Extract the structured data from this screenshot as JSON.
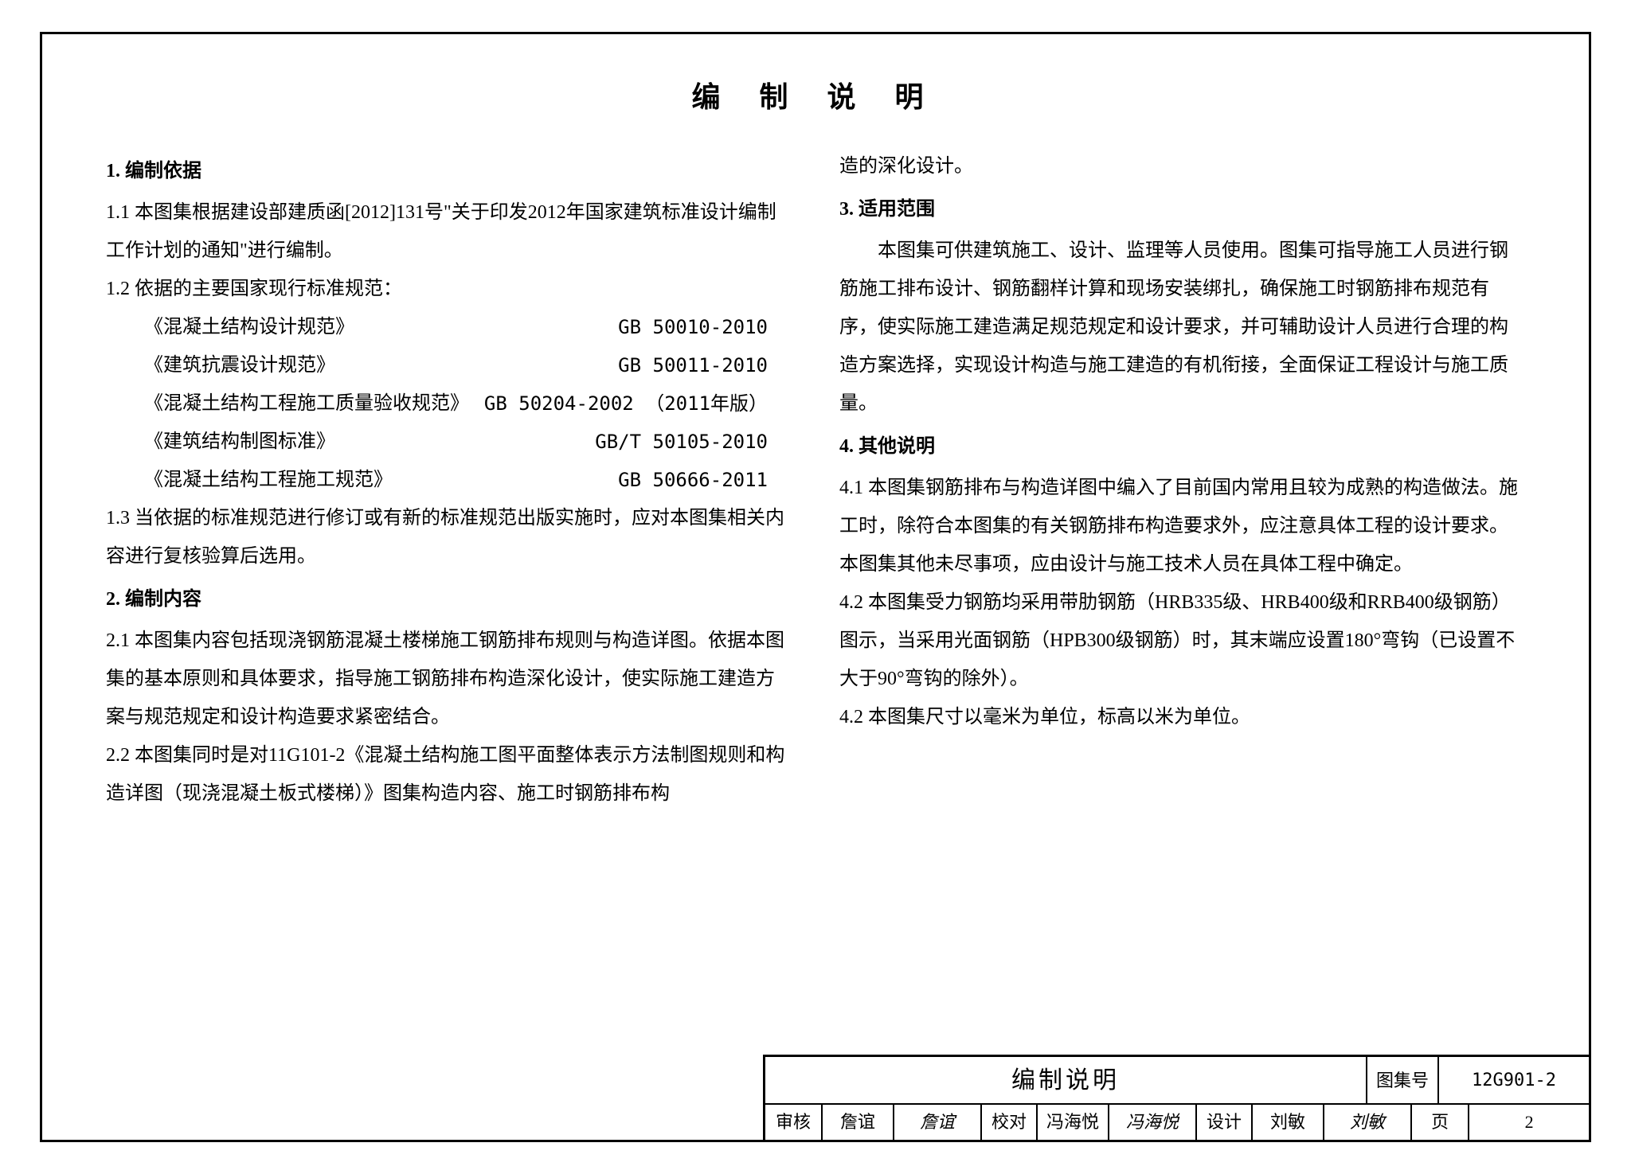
{
  "title": "编 制 说 明",
  "left": {
    "h1": "1. 编制依据",
    "p1_1": "1.1 本图集根据建设部建质函[2012]131号\"关于印发2012年国家建筑标准设计编制工作计划的通知\"进行编制。",
    "p1_2": "1.2 依据的主要国家现行标准规范：",
    "standards": [
      {
        "name": "《混凝土结构设计规范》",
        "code": "GB 50010-2010"
      },
      {
        "name": "《建筑抗震设计规范》",
        "code": "GB 50011-2010"
      },
      {
        "name": "《混凝土结构工程施工质量验收规范》",
        "code": "GB 50204-2002 （2011年版）"
      },
      {
        "name": "《建筑结构制图标准》",
        "code": "GB/T 50105-2010"
      },
      {
        "name": "《混凝土结构工程施工规范》",
        "code": "GB 50666-2011"
      }
    ],
    "p1_3": "1.3 当依据的标准规范进行修订或有新的标准规范出版实施时，应对本图集相关内容进行复核验算后选用。",
    "h2": "2. 编制内容",
    "p2_1": "2.1 本图集内容包括现浇钢筋混凝土楼梯施工钢筋排布规则与构造详图。依据本图集的基本原则和具体要求，指导施工钢筋排布构造深化设计，使实际施工建造方案与规范规定和设计构造要求紧密结合。",
    "p2_2": "2.2 本图集同时是对11G101-2《混凝土结构施工图平面整体表示方法制图规则和构造详图（现浇混凝土板式楼梯）》图集构造内容、施工时钢筋排布构"
  },
  "right": {
    "cont": "造的深化设计。",
    "h3": "3. 适用范围",
    "p3": "本图集可供建筑施工、设计、监理等人员使用。图集可指导施工人员进行钢筋施工排布设计、钢筋翻样计算和现场安装绑扎，确保施工时钢筋排布规范有序，使实际施工建造满足规范规定和设计要求，并可辅助设计人员进行合理的构造方案选择，实现设计构造与施工建造的有机衔接，全面保证工程设计与施工质量。",
    "h4": "4. 其他说明",
    "p4_1": "4.1 本图集钢筋排布与构造详图中编入了目前国内常用且较为成熟的构造做法。施工时，除符合本图集的有关钢筋排布构造要求外，应注意具体工程的设计要求。本图集其他未尽事项，应由设计与施工技术人员在具体工程中确定。",
    "p4_2": "4.2 本图集受力钢筋均采用带肋钢筋（HRB335级、HRB400级和RRB400级钢筋）图示，当采用光面钢筋（HPB300级钢筋）时，其末端应设置180°弯钩（已设置不大于90°弯钩的除外）。",
    "p4_3": "4.2 本图集尺寸以毫米为单位，标高以米为单位。"
  },
  "titleblock": {
    "block_title": "编制说明",
    "atlas_label": "图集号",
    "atlas_no": "12G901-2",
    "audit_label": "审核",
    "audit_name": "詹谊",
    "audit_sig": "詹谊",
    "check_label": "校对",
    "check_name": "冯海悦",
    "check_sig": "冯海悦",
    "design_label": "设计",
    "design_name": "刘敏",
    "design_sig": "刘敏",
    "page_label": "页",
    "page_no": "2"
  }
}
